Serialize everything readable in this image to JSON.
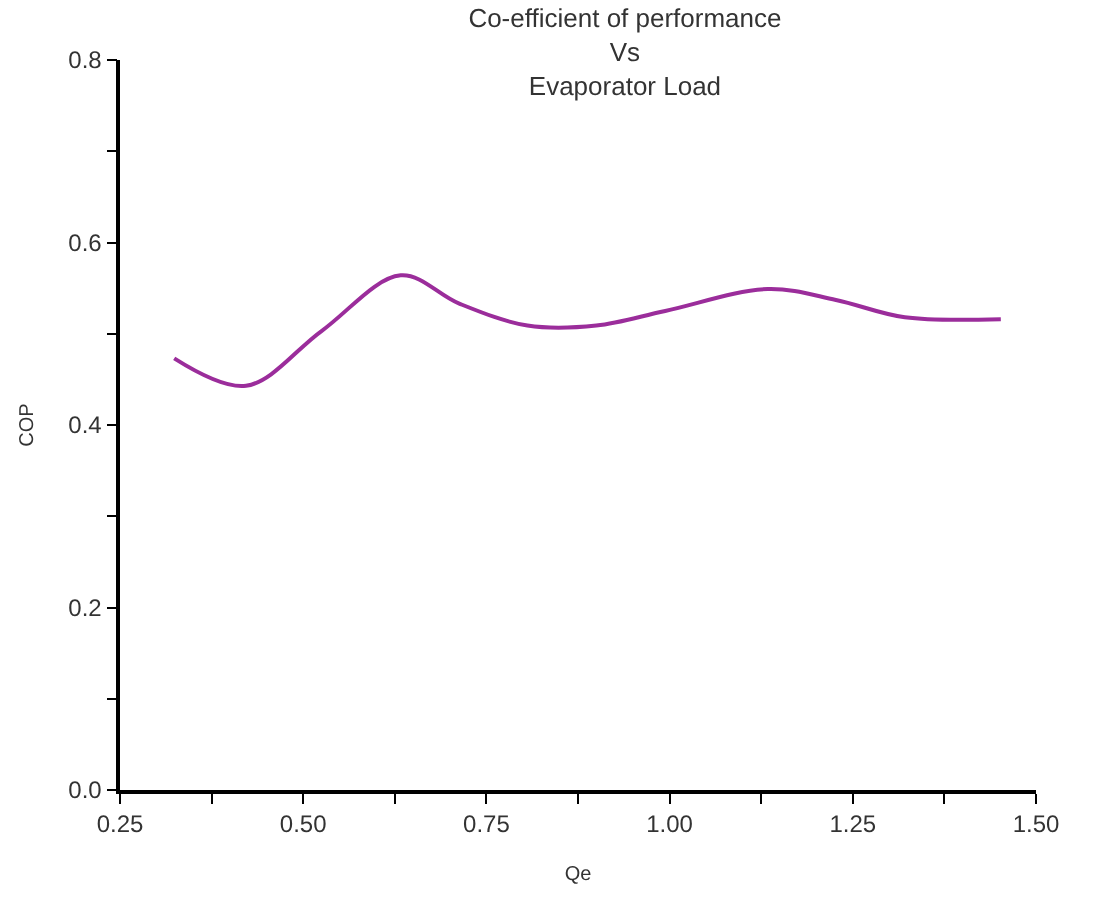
{
  "chart_data": {
    "type": "line",
    "title": "Co-efficient of performance\nVs\nEvaporator Load",
    "xlabel": "Qe",
    "ylabel": "COP",
    "x": [
      0.324,
      0.422,
      0.525,
      0.633,
      0.713,
      0.806,
      0.9,
      0.994,
      1.134,
      1.227,
      1.321,
      1.452
    ],
    "series": [
      {
        "color": "#9b2d9b",
        "values": [
          0.473,
          0.443,
          0.503,
          0.564,
          0.533,
          0.509,
          0.509,
          0.525,
          0.549,
          0.537,
          0.518,
          0.516
        ]
      }
    ],
    "xlim": [
      0.25,
      1.5
    ],
    "ylim": [
      0,
      0.8
    ],
    "xticks": [
      {
        "value": 0.25,
        "label": "0.25"
      },
      {
        "value": 0.375,
        "label": null
      },
      {
        "value": 0.5,
        "label": "0.50"
      },
      {
        "value": 0.625,
        "label": null
      },
      {
        "value": 0.75,
        "label": "0.75"
      },
      {
        "value": 0.875,
        "label": null
      },
      {
        "value": 1.0,
        "label": "1.00"
      },
      {
        "value": 1.125,
        "label": null
      },
      {
        "value": 1.25,
        "label": "1.25"
      },
      {
        "value": 1.375,
        "label": null
      },
      {
        "value": 1.5,
        "label": "1.50"
      }
    ],
    "yticks": [
      {
        "value": 0,
        "label": "0.0"
      },
      {
        "value": 0.1,
        "label": null
      },
      {
        "value": 0.2,
        "label": "0.2"
      },
      {
        "value": 0.3,
        "label": null
      },
      {
        "value": 0.4,
        "label": "0.4"
      },
      {
        "value": 0.5,
        "label": null
      },
      {
        "value": 0.6,
        "label": "0.6"
      },
      {
        "value": 0.7,
        "label": null
      },
      {
        "value": 0.8,
        "label": "0.8"
      }
    ],
    "marker": "none",
    "line_style": "solid"
  }
}
